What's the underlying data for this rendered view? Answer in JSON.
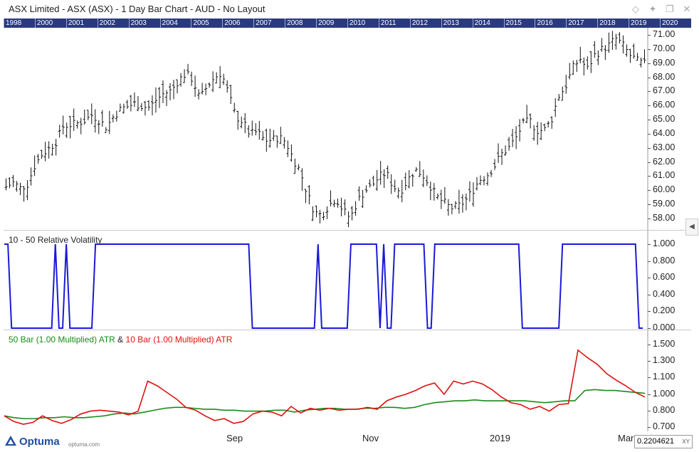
{
  "window": {
    "title": "ASX Limited - ASX (ASX) - 1 Day Bar Chart - AUD - No Layout"
  },
  "year_bar": [
    "1998",
    "2000",
    "2001",
    "2002",
    "2003",
    "2004",
    "2005",
    "2006",
    "2007",
    "2008",
    "2009",
    "2010",
    "2011",
    "2012",
    "2013",
    "2014",
    "2015",
    "2016",
    "2017",
    "2018",
    "2019",
    "2020"
  ],
  "panels": {
    "price": {
      "y_labels": [
        "71.00",
        "70.00",
        "69.00",
        "68.00",
        "67.00",
        "66.00",
        "65.00",
        "64.00",
        "63.00",
        "62.00",
        "61.00",
        "60.00",
        "59.00",
        "58.00"
      ]
    },
    "volatility": {
      "title": "10 - 50 Relative Volatility",
      "title_color": "#222222",
      "y_labels": [
        "1.000",
        "0.800",
        "0.600",
        "0.400",
        "0.200",
        "0.000"
      ],
      "line_color": "#1a1ad6"
    },
    "atr": {
      "title_a": "50 Bar (1.00 Multiplied) ATR",
      "title_join": " & ",
      "title_b": "10 Bar (1.00 Multiplied) ATR",
      "color_a": "#1a8a1a",
      "color_b": "#e01010",
      "y_labels": [
        "1.500",
        "1.300",
        "1.100",
        "1.000",
        "0.800",
        "0.700"
      ]
    }
  },
  "x_labels": [
    "Sep",
    "Nov",
    "2019",
    "Mar"
  ],
  "footer": {
    "logo": "Optuma",
    "url": "optuma.com",
    "readout_value": "0.2204621",
    "readout_mode": "XY"
  },
  "chart_data": [
    {
      "type": "bar",
      "subtype": "ohlc",
      "title": "ASX Limited - ASX (ASX) - 1 Day Bar Chart - AUD - No Layout",
      "ylim": [
        57.5,
        71.3
      ],
      "close_series": [
        60.3,
        60.6,
        60.2,
        60.5,
        61.8,
        62.6,
        63.0,
        63.5,
        64.6,
        64.7,
        64.8,
        65.0,
        65.4,
        65.0,
        64.5,
        65.3,
        65.8,
        66.0,
        66.2,
        66.0,
        65.9,
        66.5,
        66.9,
        67.1,
        67.8,
        68.3,
        67.9,
        66.5,
        67.4,
        68.0,
        68.4,
        66.9,
        65.3,
        64.9,
        64.0,
        64.2,
        63.6,
        63.6,
        63.8,
        63.5,
        62.3,
        61.4,
        59.8,
        58.5,
        58.3,
        59.0,
        59.5,
        58.6,
        58.1,
        59.3,
        60.0,
        60.4,
        61.0,
        61.3,
        60.3,
        60.0,
        60.8,
        61.5,
        61.2,
        60.5,
        59.6,
        59.2,
        58.8,
        58.9,
        59.3,
        60.0,
        60.8,
        61.1,
        61.7,
        62.6,
        63.0,
        63.7,
        64.7,
        65.0,
        64.3,
        64.3,
        65.0,
        66.7,
        67.4,
        68.7,
        69.4,
        68.6,
        69.6,
        70.0,
        70.3,
        70.8,
        70.3,
        69.6,
        69.2,
        69.0
      ],
      "series": [
        {
          "name": "ASX Limited - ASX (ASX)",
          "kind": "ohlc",
          "color": "#111111"
        }
      ]
    },
    {
      "type": "line",
      "title": "10 - 50 Relative Volatility",
      "ylim": [
        0,
        1.0
      ],
      "series": [
        {
          "name": "10 - 50 Relative Volatility",
          "color": "#1a1ad6",
          "values": [
            1,
            1,
            0,
            0,
            0,
            0,
            0,
            0,
            0,
            0,
            0,
            0,
            0,
            0,
            1,
            0,
            0,
            1,
            0,
            0,
            0,
            0,
            0,
            0,
            0,
            1,
            1,
            1,
            1,
            1,
            1,
            1,
            1,
            1,
            1,
            1,
            1,
            1,
            1,
            1,
            1,
            1,
            1,
            1,
            1,
            1,
            1,
            1,
            1,
            1,
            1,
            1,
            1,
            1,
            1,
            1,
            1,
            1,
            1,
            1,
            1,
            1,
            1,
            1,
            1,
            1,
            1,
            1,
            0,
            0,
            0,
            0,
            0,
            0,
            0,
            0,
            0,
            0,
            0,
            0,
            0,
            0,
            0,
            0,
            0,
            0,
            1,
            0,
            0,
            0,
            0,
            0,
            0,
            0,
            0,
            1,
            1,
            1,
            1,
            1,
            1,
            1,
            1,
            0,
            1,
            0,
            0,
            1,
            1,
            1,
            1,
            1,
            1,
            1,
            1,
            1,
            0,
            0,
            1,
            1,
            1,
            1,
            1,
            1,
            1,
            1,
            1,
            1,
            1,
            1,
            1,
            1,
            1,
            1,
            1,
            1,
            1,
            1,
            1,
            1,
            1,
            1,
            0,
            0,
            0,
            0,
            0,
            0,
            0,
            0,
            0,
            0,
            0,
            1,
            1,
            1,
            1,
            1,
            1,
            1,
            1,
            1,
            1,
            1,
            1,
            1,
            1,
            1,
            1,
            1,
            1,
            1,
            1,
            1,
            0,
            0
          ]
        }
      ]
    },
    {
      "type": "line",
      "title": "50 Bar (1.00 Multiplied) ATR & 10 Bar (1.00 Multiplied) ATR",
      "ylim": [
        0.68,
        1.56
      ],
      "series": [
        {
          "name": "50 Bar (1.00 Multiplied) ATR",
          "color": "#1a8a1a",
          "values": [
            0.8,
            0.78,
            0.77,
            0.77,
            0.78,
            0.78,
            0.79,
            0.78,
            0.78,
            0.79,
            0.8,
            0.82,
            0.83,
            0.82,
            0.84,
            0.86,
            0.88,
            0.89,
            0.89,
            0.88,
            0.87,
            0.87,
            0.86,
            0.86,
            0.85,
            0.85,
            0.85,
            0.86,
            0.86,
            0.84,
            0.86,
            0.87,
            0.88,
            0.88,
            0.87,
            0.87,
            0.88,
            0.88,
            0.89,
            0.89,
            0.88,
            0.89,
            0.92,
            0.94,
            0.95,
            0.96,
            0.96,
            0.97,
            0.96,
            0.96,
            0.96,
            0.96,
            0.96,
            0.95,
            0.94,
            0.95,
            0.96,
            0.96,
            1.07,
            1.08,
            1.07,
            1.07,
            1.06,
            1.05,
            1.04
          ]
        },
        {
          "name": "10 Bar (1.00 Multiplied) ATR",
          "color": "#e01010",
          "values": [
            0.8,
            0.74,
            0.71,
            0.73,
            0.8,
            0.75,
            0.72,
            0.76,
            0.82,
            0.85,
            0.86,
            0.85,
            0.84,
            0.81,
            0.85,
            1.17,
            1.12,
            1.05,
            0.98,
            0.89,
            0.86,
            0.8,
            0.75,
            0.77,
            0.72,
            0.74,
            0.82,
            0.85,
            0.84,
            0.8,
            0.9,
            0.83,
            0.88,
            0.86,
            0.88,
            0.86,
            0.87,
            0.87,
            0.89,
            0.87,
            0.96,
            1.0,
            1.03,
            1.07,
            1.12,
            1.15,
            1.03,
            1.17,
            1.14,
            1.17,
            1.14,
            1.08,
            1.0,
            0.94,
            0.92,
            0.87,
            0.9,
            0.85,
            0.92,
            0.93,
            1.5,
            1.42,
            1.35,
            1.25,
            1.18,
            1.12,
            1.05,
            1.0
          ]
        }
      ]
    }
  ]
}
